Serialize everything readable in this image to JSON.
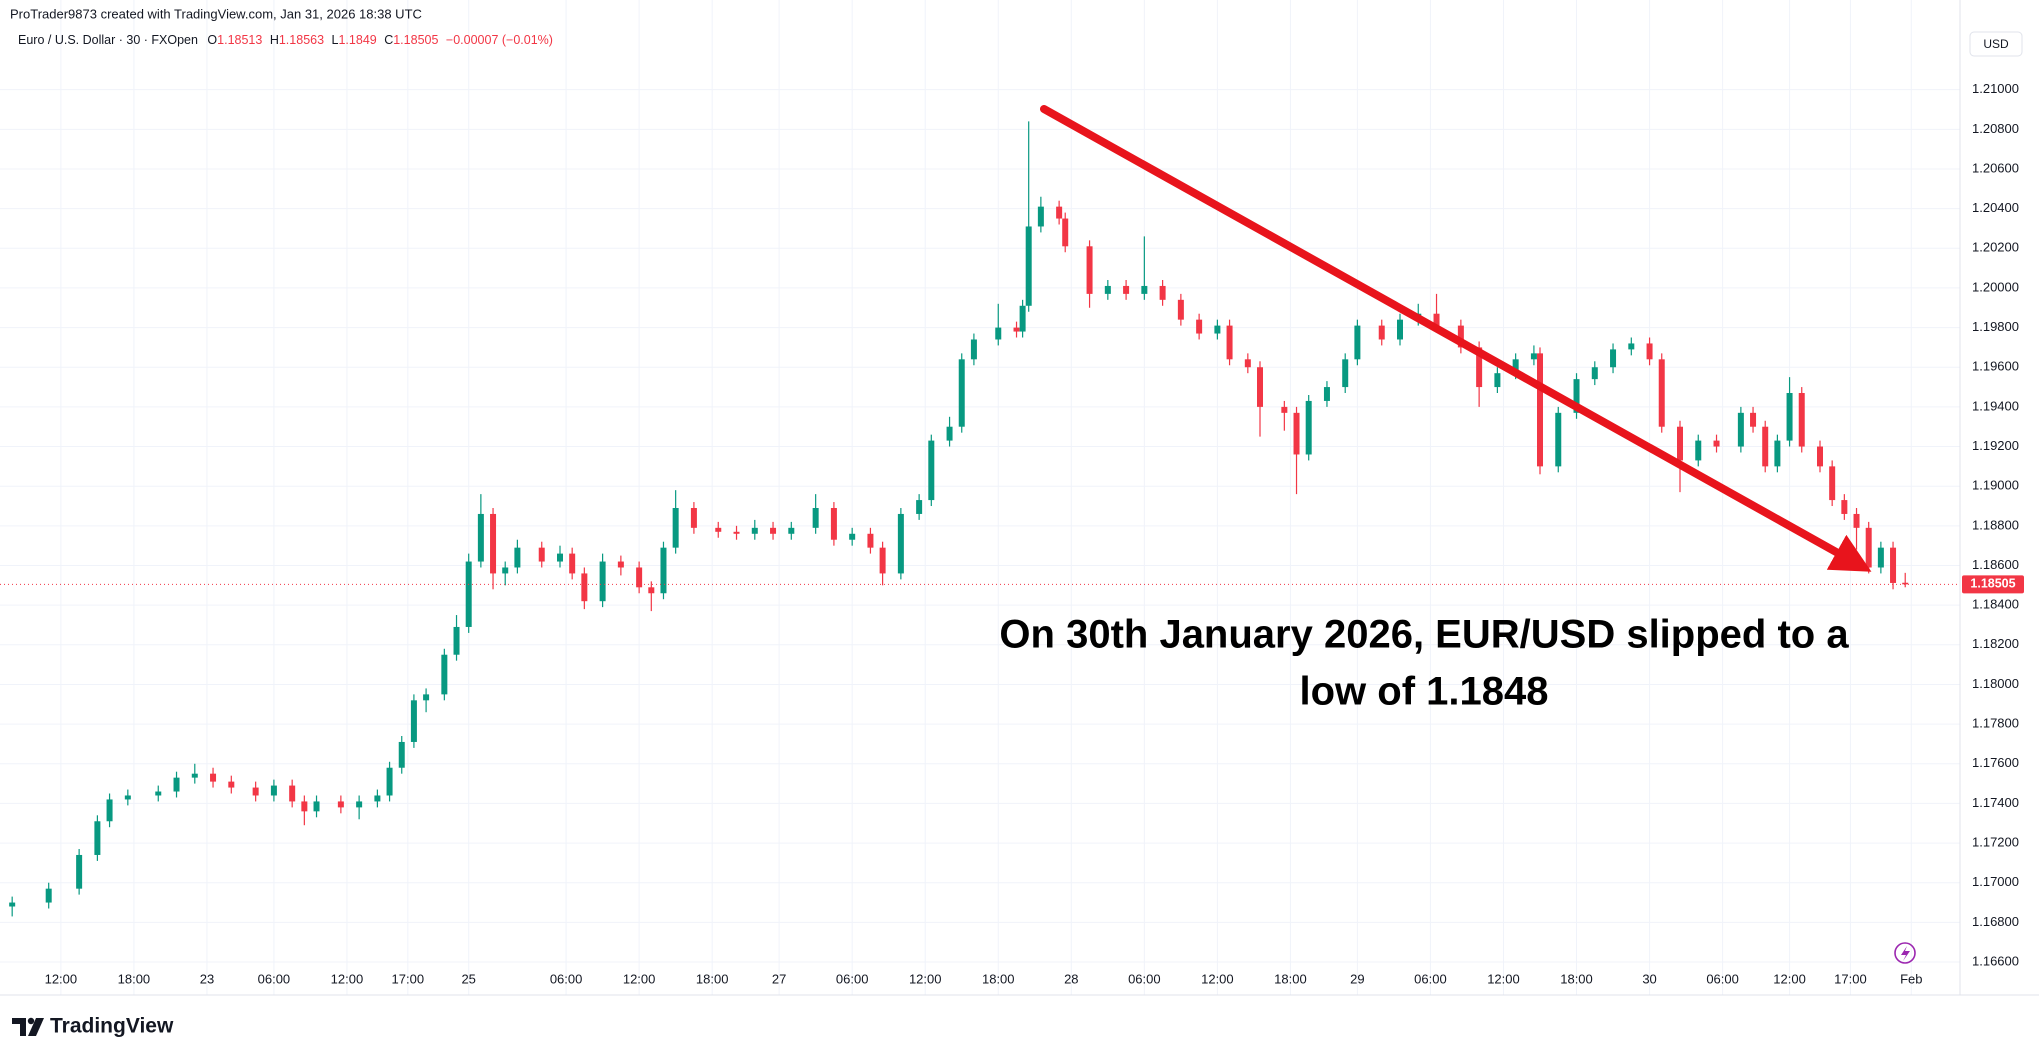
{
  "chart_data": {
    "type": "candlestick",
    "attribution": "ProTrader9873 created with TradingView.com, Jan 31, 2026 18:38 UTC",
    "title": "Euro / U.S. Dollar · 30 · FXOpen",
    "ohlc_labels": [
      "O",
      "H",
      "L",
      "C"
    ],
    "change": "−0.00007 (−0.01%)",
    "currency": "USD",
    "brand": "TradingView",
    "annotation": [
      "On 30th January 2026, EUR/USD slipped to a",
      "low of 1.1848"
    ],
    "up_color": "#089981",
    "down_color": "#f23645",
    "grid": true,
    "xlim": [
      -2,
      320
    ],
    "ylim": [
      1.16585,
      1.2119
    ],
    "xticks": [
      {
        "value": 8,
        "label": "12:00"
      },
      {
        "value": 20,
        "label": "18:00"
      },
      {
        "value": 32,
        "label": "23"
      },
      {
        "value": 43,
        "label": "06:00"
      },
      {
        "value": 55,
        "label": "12:00"
      },
      {
        "value": 65,
        "label": "17:00"
      },
      {
        "value": 75,
        "label": "25"
      },
      {
        "value": 91,
        "label": "06:00"
      },
      {
        "value": 103,
        "label": "12:00"
      },
      {
        "value": 115,
        "label": "18:00"
      },
      {
        "value": 126,
        "label": "27"
      },
      {
        "value": 138,
        "label": "06:00"
      },
      {
        "value": 150,
        "label": "12:00"
      },
      {
        "value": 162,
        "label": "18:00"
      },
      {
        "value": 174,
        "label": "28"
      },
      {
        "value": 186,
        "label": "06:00"
      },
      {
        "value": 198,
        "label": "12:00"
      },
      {
        "value": 210,
        "label": "18:00"
      },
      {
        "value": 221,
        "label": "29"
      },
      {
        "value": 233,
        "label": "06:00"
      },
      {
        "value": 245,
        "label": "12:00"
      },
      {
        "value": 257,
        "label": "18:00"
      },
      {
        "value": 269,
        "label": "30"
      },
      {
        "value": 281,
        "label": "06:00"
      },
      {
        "value": 292,
        "label": "12:00"
      },
      {
        "value": 302,
        "label": "17:00"
      },
      {
        "value": 312,
        "label": "Feb"
      }
    ],
    "yticks": [
      {
        "value": 1.166,
        "label": "1.16600"
      },
      {
        "value": 1.168,
        "label": "1.16800"
      },
      {
        "value": 1.17,
        "label": "1.17000"
      },
      {
        "value": 1.172,
        "label": "1.17200"
      },
      {
        "value": 1.174,
        "label": "1.17400"
      },
      {
        "value": 1.176,
        "label": "1.17600"
      },
      {
        "value": 1.178,
        "label": "1.17800"
      },
      {
        "value": 1.18,
        "label": "1.18000"
      },
      {
        "value": 1.182,
        "label": "1.18200"
      },
      {
        "value": 1.184,
        "label": "1.18400"
      },
      {
        "value": 1.186,
        "label": "1.18600"
      },
      {
        "value": 1.188,
        "label": "1.18800"
      },
      {
        "value": 1.19,
        "label": "1.19000"
      },
      {
        "value": 1.192,
        "label": "1.19200"
      },
      {
        "value": 1.194,
        "label": "1.19400"
      },
      {
        "value": 1.196,
        "label": "1.19600"
      },
      {
        "value": 1.198,
        "label": "1.19800"
      },
      {
        "value": 1.2,
        "label": "1.20000"
      },
      {
        "value": 1.202,
        "label": "1.20200"
      },
      {
        "value": 1.204,
        "label": "1.20400"
      },
      {
        "value": 1.206,
        "label": "1.20600"
      },
      {
        "value": 1.208,
        "label": "1.20800"
      },
      {
        "value": 1.21,
        "label": "1.21000"
      }
    ],
    "x": [
      0,
      6,
      11,
      14,
      16,
      19,
      24,
      27,
      30,
      33,
      36,
      40,
      43,
      46,
      48,
      50,
      54,
      57,
      60,
      62,
      64,
      66,
      68,
      71,
      73,
      75,
      77,
      79,
      81,
      83,
      87,
      90,
      92,
      94,
      97,
      100,
      103,
      105,
      107,
      109,
      112,
      116,
      119,
      122,
      125,
      128,
      132,
      135,
      138,
      141,
      143,
      146,
      149,
      151,
      154,
      156,
      158,
      162,
      165,
      166,
      167,
      169,
      172,
      173,
      177,
      180,
      183,
      186,
      189,
      192,
      195,
      198,
      200,
      203,
      205,
      209,
      211,
      213,
      216,
      219,
      221,
      225,
      228,
      231,
      234,
      238,
      241,
      244,
      247,
      250,
      251,
      254,
      257,
      260,
      263,
      266,
      269,
      271,
      274,
      277,
      280,
      284,
      286,
      288,
      290,
      292,
      294,
      297,
      299,
      301,
      303,
      305,
      307,
      309,
      311
    ],
    "open": [
      1.1688,
      1.169,
      1.1697,
      1.1714,
      1.1731,
      1.1742,
      1.1744,
      1.1746,
      1.1753,
      1.1755,
      1.1751,
      1.1748,
      1.1744,
      1.1749,
      1.1741,
      1.1736,
      1.1741,
      1.1738,
      1.1741,
      1.1744,
      1.1758,
      1.1771,
      1.1792,
      1.1795,
      1.1815,
      1.1829,
      1.1862,
      1.1886,
      1.1856,
      1.1859,
      1.1869,
      1.1862,
      1.1866,
      1.1856,
      1.1842,
      1.1862,
      1.1859,
      1.1849,
      1.1846,
      1.1869,
      1.1889,
      1.1879,
      1.1877,
      1.1876,
      1.1879,
      1.1876,
      1.1879,
      1.1889,
      1.1873,
      1.1876,
      1.1869,
      1.1856,
      1.1886,
      1.1893,
      1.1923,
      1.193,
      1.1964,
      1.1974,
      1.198,
      1.1978,
      1.1991,
      1.2031,
      1.2041,
      1.2035,
      1.2021,
      1.1997,
      1.2001,
      1.1997,
      1.2001,
      1.1994,
      1.1984,
      1.1977,
      1.1981,
      1.1964,
      1.196,
      1.194,
      1.1937,
      1.1916,
      1.1943,
      1.195,
      1.1964,
      1.1981,
      1.1974,
      1.1984,
      1.1987,
      1.1981,
      1.197,
      1.195,
      1.1957,
      1.1964,
      1.1967,
      1.191,
      1.1937,
      1.1954,
      1.196,
      1.1969,
      1.1972,
      1.1964,
      1.193,
      1.1913,
      1.1923,
      1.192,
      1.1937,
      1.193,
      1.191,
      1.1923,
      1.1947,
      1.192,
      1.191,
      1.1893,
      1.1886,
      1.1879,
      1.1859,
      1.1869,
      1.18513
    ],
    "high": [
      1.1693,
      1.17,
      1.1717,
      1.1734,
      1.1745,
      1.1747,
      1.1749,
      1.1756,
      1.176,
      1.1758,
      1.1754,
      1.1751,
      1.1752,
      1.1752,
      1.1744,
      1.1744,
      1.1744,
      1.1744,
      1.1747,
      1.1761,
      1.1774,
      1.1795,
      1.1798,
      1.1818,
      1.1835,
      1.1866,
      1.1896,
      1.1889,
      1.1862,
      1.1873,
      1.1872,
      1.187,
      1.1869,
      1.1859,
      1.1866,
      1.1865,
      1.1862,
      1.1852,
      1.1872,
      1.1898,
      1.1892,
      1.1882,
      1.188,
      1.1883,
      1.1882,
      1.1882,
      1.1896,
      1.1892,
      1.1879,
      1.1879,
      1.1872,
      1.1889,
      1.1896,
      1.1926,
      1.1935,
      1.1967,
      1.1977,
      1.1992,
      1.1983,
      1.1994,
      1.2084,
      1.2046,
      1.2044,
      1.2038,
      1.2024,
      1.2004,
      1.2004,
      1.2026,
      1.2004,
      1.1997,
      1.1987,
      1.1984,
      1.1984,
      1.1967,
      1.1963,
      1.1943,
      1.194,
      1.1946,
      1.1953,
      1.1967,
      1.1984,
      1.1984,
      1.1987,
      1.1992,
      1.1997,
      1.1984,
      1.1973,
      1.196,
      1.1967,
      1.1971,
      1.197,
      1.194,
      1.1957,
      1.1963,
      1.1972,
      1.1975,
      1.1975,
      1.1967,
      1.1933,
      1.1926,
      1.1926,
      1.194,
      1.194,
      1.1933,
      1.1926,
      1.1955,
      1.195,
      1.1923,
      1.1913,
      1.1896,
      1.1889,
      1.1882,
      1.1872,
      1.1872,
      1.18563
    ],
    "low": [
      1.1683,
      1.1687,
      1.1694,
      1.1711,
      1.1728,
      1.1739,
      1.1741,
      1.1743,
      1.175,
      1.1748,
      1.1745,
      1.1741,
      1.1741,
      1.1738,
      1.1729,
      1.1733,
      1.1735,
      1.1732,
      1.1738,
      1.1741,
      1.1755,
      1.1768,
      1.1786,
      1.1792,
      1.1812,
      1.1826,
      1.1859,
      1.1848,
      1.185,
      1.1856,
      1.1859,
      1.1859,
      1.1853,
      1.1838,
      1.1839,
      1.1855,
      1.1846,
      1.1837,
      1.1843,
      1.1866,
      1.1876,
      1.1874,
      1.1873,
      1.1873,
      1.1873,
      1.1873,
      1.1876,
      1.187,
      1.187,
      1.1866,
      1.185,
      1.1853,
      1.1883,
      1.189,
      1.192,
      1.1927,
      1.1961,
      1.1971,
      1.1975,
      1.1975,
      1.1988,
      1.2028,
      1.2032,
      1.2018,
      1.199,
      1.1994,
      1.1994,
      1.1994,
      1.1991,
      1.1981,
      1.1974,
      1.1974,
      1.1961,
      1.1957,
      1.1925,
      1.1928,
      1.1896,
      1.1913,
      1.194,
      1.1947,
      1.1961,
      1.1971,
      1.1971,
      1.1981,
      1.1978,
      1.1967,
      1.194,
      1.1947,
      1.1954,
      1.1961,
      1.1906,
      1.1907,
      1.1934,
      1.1951,
      1.1957,
      1.1966,
      1.1961,
      1.1927,
      1.1897,
      1.191,
      1.1917,
      1.1917,
      1.1927,
      1.1907,
      1.1907,
      1.192,
      1.1917,
      1.1907,
      1.189,
      1.1883,
      1.1868,
      1.1856,
      1.1856,
      1.1848,
      1.1849
    ],
    "close": [
      1.169,
      1.1697,
      1.1714,
      1.1731,
      1.1742,
      1.1744,
      1.1746,
      1.1753,
      1.1755,
      1.1751,
      1.1748,
      1.1744,
      1.1749,
      1.1741,
      1.1736,
      1.1741,
      1.1738,
      1.1741,
      1.1744,
      1.1758,
      1.1771,
      1.1792,
      1.1795,
      1.1815,
      1.1829,
      1.1862,
      1.1886,
      1.1856,
      1.1859,
      1.1869,
      1.1862,
      1.1866,
      1.1856,
      1.1842,
      1.1862,
      1.1859,
      1.1849,
      1.1846,
      1.1869,
      1.1889,
      1.1879,
      1.1877,
      1.1876,
      1.1879,
      1.1876,
      1.1879,
      1.1889,
      1.1873,
      1.1876,
      1.1869,
      1.1856,
      1.1886,
      1.1893,
      1.1923,
      1.193,
      1.1964,
      1.1974,
      1.198,
      1.1978,
      1.1991,
      1.2031,
      1.2041,
      1.2035,
      1.2021,
      1.1997,
      1.2001,
      1.1997,
      1.2001,
      1.1994,
      1.1984,
      1.1977,
      1.1981,
      1.1964,
      1.196,
      1.194,
      1.1937,
      1.1916,
      1.1943,
      1.195,
      1.1964,
      1.1981,
      1.1974,
      1.1984,
      1.1987,
      1.1981,
      1.197,
      1.195,
      1.1957,
      1.1964,
      1.1967,
      1.191,
      1.1937,
      1.1954,
      1.196,
      1.1969,
      1.1972,
      1.1964,
      1.193,
      1.1913,
      1.1923,
      1.192,
      1.1937,
      1.193,
      1.191,
      1.1923,
      1.1947,
      1.192,
      1.191,
      1.1893,
      1.1886,
      1.1879,
      1.1859,
      1.1869,
      1.18512,
      1.18505
    ]
  }
}
